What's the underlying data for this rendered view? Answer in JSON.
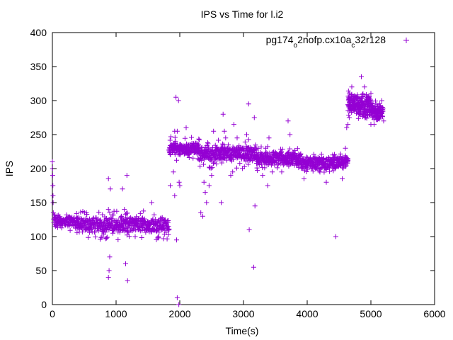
{
  "chart_data": {
    "type": "scatter",
    "title": "IPS vs Time for l.i2",
    "xlabel": "Time(s)",
    "ylabel": "IPS",
    "xlim": [
      0,
      6000
    ],
    "ylim": [
      0,
      400
    ],
    "xticks": [
      0,
      1000,
      2000,
      3000,
      4000,
      5000,
      6000
    ],
    "yticks": [
      0,
      50,
      100,
      150,
      200,
      250,
      300,
      350,
      400
    ],
    "grid": false,
    "legend_position": "top-right",
    "marker": "plus",
    "color": "#9400d3",
    "series": [
      {
        "name": "pg174_o2nofp.cx10a_c32r128",
        "legend_parts": [
          {
            "text": "pg174",
            "sub": false
          },
          {
            "text": "o",
            "sub": true
          },
          {
            "text": "2nofp.cx10a",
            "sub": false
          },
          {
            "text": "c",
            "sub": true
          },
          {
            "text": "32r128",
            "sub": false
          }
        ],
        "outliers": [
          [
            0,
            210
          ],
          [
            5,
            190
          ],
          [
            10,
            160
          ],
          [
            12,
            150
          ],
          [
            8,
            175
          ],
          [
            3,
            200
          ],
          [
            15,
            135
          ],
          [
            880,
            40
          ],
          [
            890,
            50
          ],
          [
            900,
            70
          ],
          [
            880,
            185
          ],
          [
            910,
            170
          ],
          [
            880,
            140
          ],
          [
            900,
            135
          ],
          [
            950,
            105
          ],
          [
            1100,
            170
          ],
          [
            1150,
            60
          ],
          [
            1180,
            35
          ],
          [
            1170,
            190
          ],
          [
            1130,
            140
          ],
          [
            1560,
            150
          ],
          [
            1450,
            110
          ],
          [
            1300,
            100
          ],
          [
            1850,
            175
          ],
          [
            1900,
            195
          ],
          [
            1920,
            255
          ],
          [
            1960,
            255
          ],
          [
            1940,
            305
          ],
          [
            1980,
            300
          ],
          [
            1920,
            160
          ],
          [
            1950,
            95
          ],
          [
            1960,
            10
          ],
          [
            1985,
            0
          ],
          [
            1990,
            180
          ],
          [
            2000,
            175
          ],
          [
            2100,
            260
          ],
          [
            2330,
            135
          ],
          [
            2360,
            130
          ],
          [
            2380,
            180
          ],
          [
            2400,
            165
          ],
          [
            2420,
            150
          ],
          [
            2460,
            175
          ],
          [
            2500,
            190
          ],
          [
            2530,
            255
          ],
          [
            2650,
            150
          ],
          [
            2680,
            280
          ],
          [
            2700,
            255
          ],
          [
            2720,
            245
          ],
          [
            2750,
            230
          ],
          [
            2800,
            190
          ],
          [
            2830,
            195
          ],
          [
            2850,
            265
          ],
          [
            2900,
            245
          ],
          [
            3050,
            250
          ],
          [
            3080,
            295
          ],
          [
            3090,
            110
          ],
          [
            3160,
            55
          ],
          [
            3170,
            275
          ],
          [
            3180,
            145
          ],
          [
            3200,
            230
          ],
          [
            3300,
            190
          ],
          [
            3350,
            230
          ],
          [
            3380,
            175
          ],
          [
            3400,
            245
          ],
          [
            3450,
            195
          ],
          [
            3700,
            270
          ],
          [
            3730,
            250
          ],
          [
            3600,
            195
          ],
          [
            3800,
            205
          ],
          [
            3950,
            185
          ],
          [
            4200,
            200
          ],
          [
            4300,
            180
          ],
          [
            4400,
            220
          ],
          [
            4450,
            100
          ],
          [
            4550,
            185
          ],
          [
            4600,
            230
          ],
          [
            4620,
            260
          ],
          [
            4640,
            265
          ],
          [
            4660,
            275
          ],
          [
            4850,
            335
          ],
          [
            4900,
            320
          ],
          [
            5000,
            265
          ],
          [
            5050,
            265
          ],
          [
            5200,
            270
          ],
          [
            4700,
            320
          ]
        ],
        "bands": [
          {
            "t0": 20,
            "t1": 380,
            "center": 123,
            "spread": 9,
            "step": 7,
            "outlier_spread": 14
          },
          {
            "t0": 380,
            "t1": 1830,
            "center": 117,
            "spread": 11,
            "step": 7,
            "outlier_spread": 22
          },
          {
            "t0": 1830,
            "t1": 2300,
            "center": 229,
            "spread": 9,
            "step": 6,
            "outlier_spread": 18
          },
          {
            "t0": 2300,
            "t1": 3200,
            "center": 222,
            "spread": 10,
            "step": 6,
            "outlier_spread": 22
          },
          {
            "t0": 3200,
            "t1": 3900,
            "center": 215,
            "spread": 10,
            "step": 6,
            "outlier_spread": 18
          },
          {
            "t0": 3900,
            "t1": 4640,
            "center": 208,
            "spread": 9,
            "step": 6,
            "outlier_spread": 14
          },
          {
            "t0": 4640,
            "t1": 4800,
            "center": 295,
            "spread": 15,
            "step": 4,
            "outlier_spread": 20
          },
          {
            "t0": 4800,
            "t1": 5000,
            "center": 290,
            "spread": 16,
            "step": 4,
            "outlier_spread": 22
          },
          {
            "t0": 5000,
            "t1": 5190,
            "center": 284,
            "spread": 12,
            "step": 4,
            "outlier_spread": 16
          }
        ]
      }
    ]
  }
}
